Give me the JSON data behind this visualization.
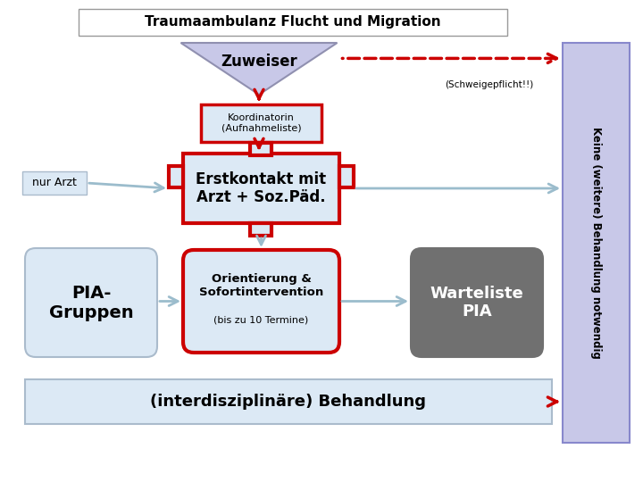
{
  "title": "Traumaambulanz Flucht und Migration",
  "zuweiser_label": "Zuweiser",
  "schweigepflicht_label": "(Schweigepflicht!!)",
  "koordinatorin_label": "Koordinatorin\n(Aufnahmeliste)",
  "erstkontakt_label": "Erstkontakt mit\nArzt + Soz.Päd.",
  "nur_arzt_label": "nur Arzt",
  "pia_gruppen_label": "PIA-\nGruppen",
  "orientierung_label": "Orientierung &\nSofortintervention",
  "orientierung_sub": "(bis zu 10 Termine)",
  "warteliste_label": "Warteliste\nPIA",
  "keine_label": "Keine (weitere) Behandlung notwendig",
  "interdisziplinare_label": "(interdisziplinäre) Behandlung",
  "bg_color": "#ffffff",
  "title_box_color": "#ffffff",
  "title_border_color": "#999999",
  "zuweiser_fill": "#c8c8e8",
  "zuweiser_border": "#9090b0",
  "koordinatorin_fill": "#dce9f5",
  "koordinatorin_border": "#cc0000",
  "erstkontakt_fill": "#dce9f5",
  "erstkontakt_border": "#cc0000",
  "pia_fill": "#dce9f5",
  "pia_border": "#aabbcc",
  "orientierung_fill": "#dce9f5",
  "orientierung_border": "#cc0000",
  "warteliste_fill": "#707070",
  "warteliste_text": "#ffffff",
  "keine_fill": "#c8c8e8",
  "keine_border": "#8888cc",
  "interdisziplinare_fill": "#dce9f5",
  "interdisziplinare_border": "#aabbcc",
  "nur_arzt_fill": "#dce9f5",
  "nur_arzt_border": "#aabbcc",
  "red_arrow_color": "#cc0000",
  "light_arrow_color": "#9bbccc",
  "dashed_arrow_color": "#cc0000"
}
